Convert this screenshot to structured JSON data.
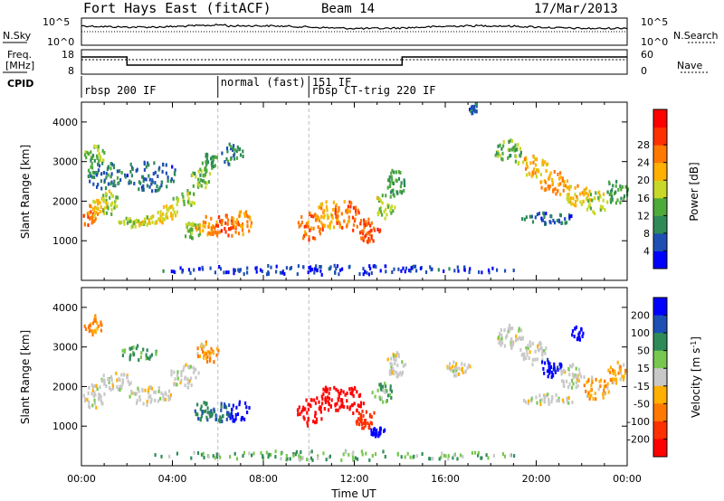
{
  "header": {
    "station": "Fort Hays East (fitACF)",
    "beam": "Beam 14",
    "date": "17/Mar/2013"
  },
  "top_panels": {
    "nsky_label": "N.Sky",
    "nsearch_label": "N.Search",
    "nsky_ticks": [
      "10^5",
      "10^0"
    ],
    "freq_label_1": "Freq.",
    "freq_label_2": "[MHz]",
    "freq_ticks": [
      "18",
      "8"
    ],
    "nave_label": "Nave",
    "nave_ticks": [
      "60",
      "0"
    ],
    "cpid_label": "CPID",
    "cpid_entries": [
      {
        "text": "rbsp 200 IF",
        "start_hour": 0.0
      },
      {
        "text": "normal (fast) 151 IF",
        "start_hour": 6.0
      },
      {
        "text": "rbsp CT-trig 220 IF",
        "start_hour": 10.0
      }
    ]
  },
  "chart_data": [
    {
      "type": "heatmap",
      "panel": "power",
      "ylabel": "Slant Range [km]",
      "xlabel": "",
      "xlim": [
        0,
        24
      ],
      "ylim": [
        0,
        4500
      ],
      "yticks": [
        "1000",
        "2000",
        "3000",
        "4000"
      ],
      "colorbar": {
        "label": "Power [dB]",
        "ticks": [
          "4",
          "8",
          "12",
          "16",
          "20",
          "24",
          "28"
        ],
        "colors": [
          "#0000ff",
          "#1e4fb4",
          "#2e8b57",
          "#4faa3c",
          "#c8d828",
          "#ffb000",
          "#ff7800",
          "#ff3000",
          "#ff0000"
        ],
        "range": [
          0,
          30
        ]
      },
      "blobs": [
        {
          "t": 0.3,
          "r": 1600,
          "dt": 0.4,
          "dr": 180,
          "v": 22
        },
        {
          "t": 0.7,
          "r": 1900,
          "dt": 0.4,
          "dr": 250,
          "v": 18
        },
        {
          "t": 1.2,
          "r": 2000,
          "dt": 0.4,
          "dr": 300,
          "v": 14
        },
        {
          "t": 0.5,
          "r": 3200,
          "dt": 0.5,
          "dr": 250,
          "v": 12
        },
        {
          "t": 1.0,
          "r": 2700,
          "dt": 0.8,
          "dr": 350,
          "v": 8
        },
        {
          "t": 2.2,
          "r": 1500,
          "dt": 0.6,
          "dr": 120,
          "v": 14
        },
        {
          "t": 3.0,
          "r": 1550,
          "dt": 0.6,
          "dr": 120,
          "v": 16
        },
        {
          "t": 3.8,
          "r": 1750,
          "dt": 0.5,
          "dr": 180,
          "v": 16
        },
        {
          "t": 4.5,
          "r": 2100,
          "dt": 0.5,
          "dr": 220,
          "v": 14
        },
        {
          "t": 5.2,
          "r": 2600,
          "dt": 0.5,
          "dr": 250,
          "v": 12
        },
        {
          "t": 5.6,
          "r": 3000,
          "dt": 0.4,
          "dr": 250,
          "v": 10
        },
        {
          "t": 3.0,
          "r": 2700,
          "dt": 1.2,
          "dr": 400,
          "v": 6
        },
        {
          "t": 4.8,
          "r": 1300,
          "dt": 0.5,
          "dr": 200,
          "v": 12
        },
        {
          "t": 5.5,
          "r": 1400,
          "dt": 0.6,
          "dr": 250,
          "v": 20
        },
        {
          "t": 6.3,
          "r": 1400,
          "dt": 0.6,
          "dr": 280,
          "v": 24
        },
        {
          "t": 7.0,
          "r": 1500,
          "dt": 0.5,
          "dr": 300,
          "v": 20
        },
        {
          "t": 6.6,
          "r": 3200,
          "dt": 0.5,
          "dr": 300,
          "v": 8
        },
        {
          "t": 10.0,
          "r": 1400,
          "dt": 0.6,
          "dr": 350,
          "v": 22
        },
        {
          "t": 10.8,
          "r": 1700,
          "dt": 0.6,
          "dr": 350,
          "v": 18
        },
        {
          "t": 11.6,
          "r": 1700,
          "dt": 0.6,
          "dr": 350,
          "v": 22
        },
        {
          "t": 12.5,
          "r": 1300,
          "dt": 0.6,
          "dr": 300,
          "v": 24
        },
        {
          "t": 13.3,
          "r": 1900,
          "dt": 0.5,
          "dr": 300,
          "v": 14
        },
        {
          "t": 13.8,
          "r": 2500,
          "dt": 0.4,
          "dr": 350,
          "v": 10
        },
        {
          "t": 17.2,
          "r": 4400,
          "dt": 0.2,
          "dr": 150,
          "v": 6
        },
        {
          "t": 18.8,
          "r": 3300,
          "dt": 0.7,
          "dr": 280,
          "v": 12
        },
        {
          "t": 19.8,
          "r": 2900,
          "dt": 0.7,
          "dr": 280,
          "v": 18
        },
        {
          "t": 20.8,
          "r": 2500,
          "dt": 0.7,
          "dr": 300,
          "v": 20
        },
        {
          "t": 21.8,
          "r": 2200,
          "dt": 0.6,
          "dr": 300,
          "v": 18
        },
        {
          "t": 22.6,
          "r": 2000,
          "dt": 0.5,
          "dr": 300,
          "v": 14
        },
        {
          "t": 23.5,
          "r": 2300,
          "dt": 0.5,
          "dr": 350,
          "v": 10
        },
        {
          "t": 20.5,
          "r": 1600,
          "dt": 1.2,
          "dr": 150,
          "v": 6
        },
        {
          "t": 11.0,
          "r": 300,
          "dt": 8.0,
          "dr": 120,
          "v": 4
        }
      ]
    },
    {
      "type": "heatmap",
      "panel": "velocity",
      "ylabel": "Slant Range [km]",
      "xlabel": "Time UT",
      "xlim": [
        0,
        24
      ],
      "ylim": [
        0,
        4500
      ],
      "xticks": [
        "00:00",
        "04:00",
        "08:00",
        "12:00",
        "16:00",
        "20:00",
        "00:00"
      ],
      "yticks": [
        "1000",
        "2000",
        "3000",
        "4000"
      ],
      "colorbar": {
        "label": "Velocity [m s",
        "label_sup": "-1",
        "label_end": "]",
        "ticks": [
          "200",
          "100",
          "50",
          "15",
          "-15",
          "-50",
          "-100",
          "-200"
        ],
        "colors": [
          "#0000ff",
          "#1e4fb4",
          "#2e8b57",
          "#78c850",
          "#c8c8c8",
          "#ffb000",
          "#ff7800",
          "#ff3000",
          "#ff0000"
        ]
      },
      "blobs": [
        {
          "t": 0.5,
          "r": 1800,
          "dt": 0.5,
          "dr": 300,
          "v": 0
        },
        {
          "t": 1.5,
          "r": 2200,
          "dt": 0.7,
          "dr": 250,
          "v": 0
        },
        {
          "t": 3.0,
          "r": 1800,
          "dt": 1.0,
          "dr": 250,
          "v": 0
        },
        {
          "t": 4.5,
          "r": 2300,
          "dt": 0.7,
          "dr": 300,
          "v": 0
        },
        {
          "t": 5.5,
          "r": 2900,
          "dt": 0.5,
          "dr": 300,
          "v": -30
        },
        {
          "t": 2.5,
          "r": 2900,
          "dt": 0.8,
          "dr": 200,
          "v": 40
        },
        {
          "t": 0.5,
          "r": 3600,
          "dt": 0.4,
          "dr": 250,
          "v": -40
        },
        {
          "t": 5.3,
          "r": 1400,
          "dt": 0.5,
          "dr": 250,
          "v": 60
        },
        {
          "t": 6.1,
          "r": 1400,
          "dt": 0.5,
          "dr": 250,
          "v": 80
        },
        {
          "t": 6.9,
          "r": 1400,
          "dt": 0.5,
          "dr": 280,
          "v": 180
        },
        {
          "t": 10.0,
          "r": 1400,
          "dt": 0.6,
          "dr": 350,
          "v": -180
        },
        {
          "t": 10.9,
          "r": 1700,
          "dt": 0.6,
          "dr": 350,
          "v": -170
        },
        {
          "t": 11.8,
          "r": 1700,
          "dt": 0.6,
          "dr": 350,
          "v": -180
        },
        {
          "t": 12.5,
          "r": 1200,
          "dt": 0.5,
          "dr": 250,
          "v": -120
        },
        {
          "t": 13.2,
          "r": 1900,
          "dt": 0.5,
          "dr": 250,
          "v": 30
        },
        {
          "t": 13.8,
          "r": 2600,
          "dt": 0.4,
          "dr": 350,
          "v": 0
        },
        {
          "t": 13.0,
          "r": 900,
          "dt": 0.4,
          "dr": 120,
          "v": 180
        },
        {
          "t": 16.5,
          "r": 2500,
          "dt": 0.6,
          "dr": 200,
          "v": 0
        },
        {
          "t": 18.8,
          "r": 3300,
          "dt": 0.6,
          "dr": 300,
          "v": 0
        },
        {
          "t": 19.8,
          "r": 2900,
          "dt": 0.7,
          "dr": 300,
          "v": 0
        },
        {
          "t": 20.6,
          "r": 2500,
          "dt": 0.5,
          "dr": 250,
          "v": 160
        },
        {
          "t": 21.5,
          "r": 2300,
          "dt": 0.6,
          "dr": 300,
          "v": 0
        },
        {
          "t": 22.6,
          "r": 2000,
          "dt": 0.6,
          "dr": 300,
          "v": -30
        },
        {
          "t": 23.5,
          "r": 2400,
          "dt": 0.4,
          "dr": 300,
          "v": -20
        },
        {
          "t": 21.8,
          "r": 3400,
          "dt": 0.3,
          "dr": 200,
          "v": 170
        },
        {
          "t": 20.5,
          "r": 1700,
          "dt": 1.2,
          "dr": 150,
          "v": 0
        },
        {
          "t": 11.0,
          "r": 300,
          "dt": 8.0,
          "dr": 120,
          "v": 30
        }
      ]
    }
  ]
}
